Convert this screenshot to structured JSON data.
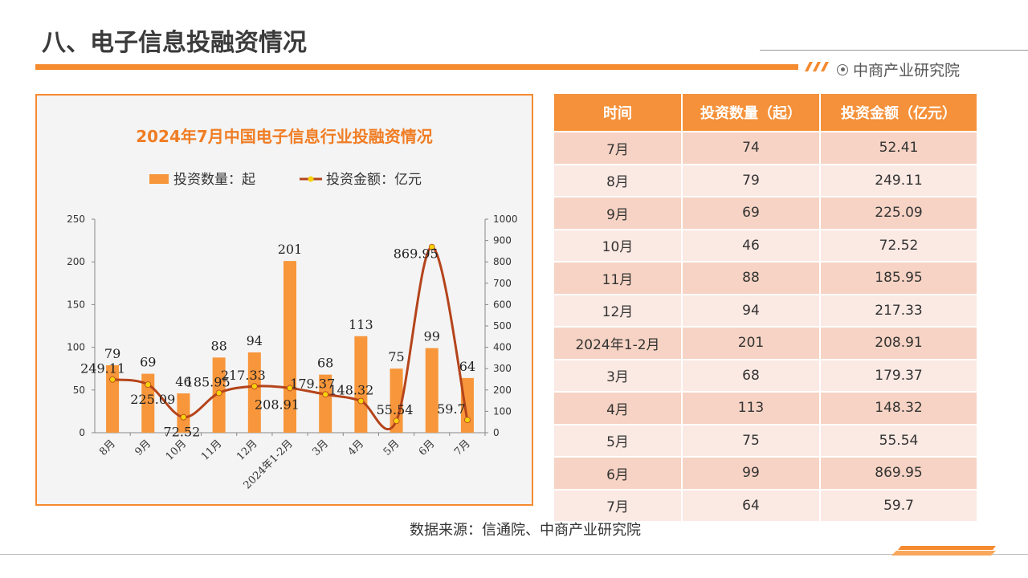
{
  "page": {
    "title": "八、电子信息投融资情况",
    "brand": "中商产业研究院",
    "source": "数据来源：信通院、中商产业研究院",
    "accent_color": "#f58a2f",
    "line_color": "#b5441b"
  },
  "table": {
    "headers": [
      "时间",
      "投资数量（起）",
      "投资金额（亿元）"
    ],
    "rows": [
      [
        "7月",
        "74",
        "52.41"
      ],
      [
        "8月",
        "79",
        "249.11"
      ],
      [
        "9月",
        "69",
        "225.09"
      ],
      [
        "10月",
        "46",
        "72.52"
      ],
      [
        "11月",
        "88",
        "185.95"
      ],
      [
        "12月",
        "94",
        "217.33"
      ],
      [
        "2024年1-2月",
        "201",
        "208.91"
      ],
      [
        "3月",
        "68",
        "179.37"
      ],
      [
        "4月",
        "113",
        "148.32"
      ],
      [
        "5月",
        "75",
        "55.54"
      ],
      [
        "6月",
        "99",
        "869.95"
      ],
      [
        "7月",
        "64",
        "59.7"
      ]
    ]
  },
  "chart_data": {
    "type": "bar",
    "title": "2024年7月中国电子信息行业投融资情况",
    "categories": [
      "8月",
      "9月",
      "10月",
      "11月",
      "12月",
      "2024年1-2月",
      "3月",
      "4月",
      "5月",
      "6月",
      "7月"
    ],
    "series": [
      {
        "name": "投资数量：起",
        "type": "bar",
        "axis": "left",
        "color": "#f7963a",
        "values": [
          79,
          69,
          46,
          88,
          94,
          201,
          68,
          113,
          75,
          99,
          64
        ]
      },
      {
        "name": "投资金额：亿元",
        "type": "line",
        "axis": "right",
        "color": "#b5441b",
        "marker_color": "#f5d20a",
        "values": [
          249.11,
          225.09,
          72.52,
          185.95,
          217.33,
          208.91,
          179.37,
          148.32,
          55.54,
          869.95,
          59.7
        ]
      }
    ],
    "ylim_left": [
      0,
      250
    ],
    "yticks_left": [
      0,
      50,
      100,
      150,
      200,
      250
    ],
    "ylim_right": [
      0,
      1000
    ],
    "yticks_right": [
      0,
      100,
      200,
      300,
      400,
      500,
      600,
      700,
      800,
      900,
      1000
    ],
    "legend_position": "top",
    "grid": false
  }
}
